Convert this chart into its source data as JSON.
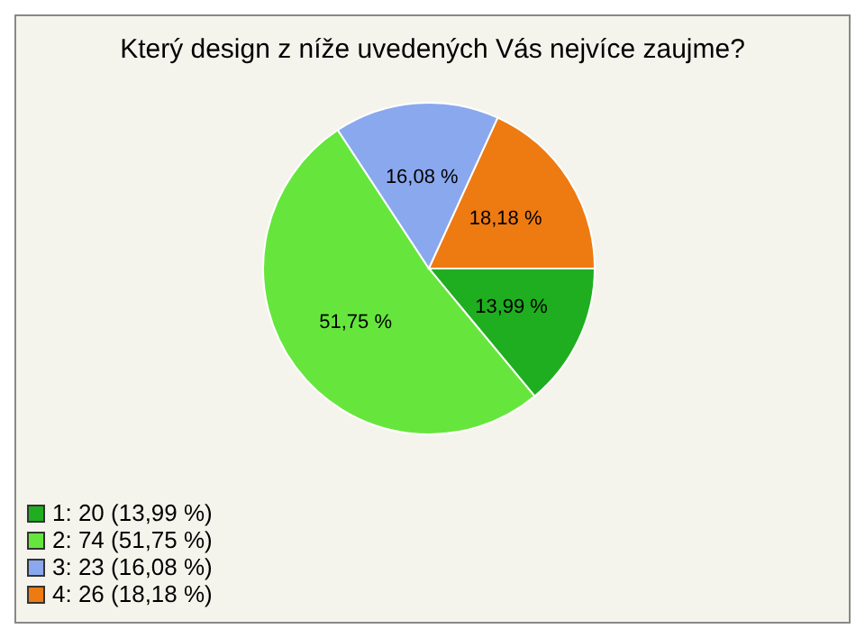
{
  "chart_data": {
    "type": "pie",
    "title": "Který design z níže uvedených Vás nejvíce zaujme?",
    "categories": [
      "1: 20 (13,99 %)",
      "2: 74 (51,75 %)",
      "3: 23 (16,08 %)",
      "4: 26 (18,18 %)"
    ],
    "values": [
      13.99,
      51.75,
      16.08,
      18.18
    ],
    "value_labels": [
      "13,99 %",
      "51,75 %",
      "16,08 %",
      "18,18 %"
    ],
    "colors": [
      "#1fae1f",
      "#66e63c",
      "#8aa8ee",
      "#ee7a12"
    ],
    "legend": "bottom left"
  }
}
